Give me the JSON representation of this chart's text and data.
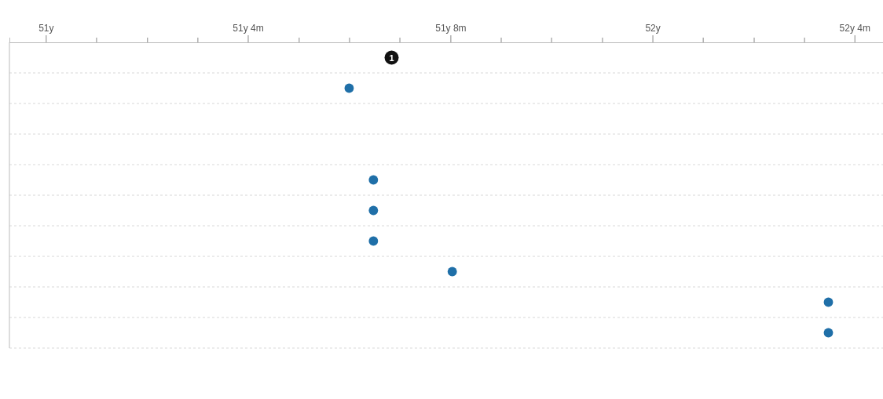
{
  "chart_data": {
    "type": "scatter",
    "orientation": "horizontal",
    "color": "#1f6fa8",
    "marker": "circle",
    "grid": true,
    "categories": [
      null,
      null,
      null,
      null,
      null,
      null,
      null,
      null,
      null,
      null
    ],
    "values": [
      null,
      51.5,
      null,
      null,
      51.54,
      51.54,
      51.54,
      51.67,
      52.29,
      52.29
    ],
    "xlim": [
      50.94,
      52.38
    ],
    "xticks": [
      {
        "value": 51,
        "label": "51y"
      },
      {
        "value": 51.083,
        "label": null
      },
      {
        "value": 51.167,
        "label": null
      },
      {
        "value": 51.25,
        "label": null
      },
      {
        "value": 51.333,
        "label": "51y 4m"
      },
      {
        "value": 51.417,
        "label": null
      },
      {
        "value": 51.5,
        "label": null
      },
      {
        "value": 51.583,
        "label": null
      },
      {
        "value": 51.667,
        "label": "51y 8m"
      },
      {
        "value": 51.75,
        "label": null
      },
      {
        "value": 51.833,
        "label": null
      },
      {
        "value": 51.917,
        "label": null
      },
      {
        "value": 52,
        "label": "52y"
      },
      {
        "value": 52.083,
        "label": null
      },
      {
        "value": 52.167,
        "label": null
      },
      {
        "value": 52.25,
        "label": null
      },
      {
        "value": 52.333,
        "label": "52y 4m"
      }
    ],
    "annotations": [
      {
        "text": "1",
        "x": 51.57
      }
    ]
  }
}
